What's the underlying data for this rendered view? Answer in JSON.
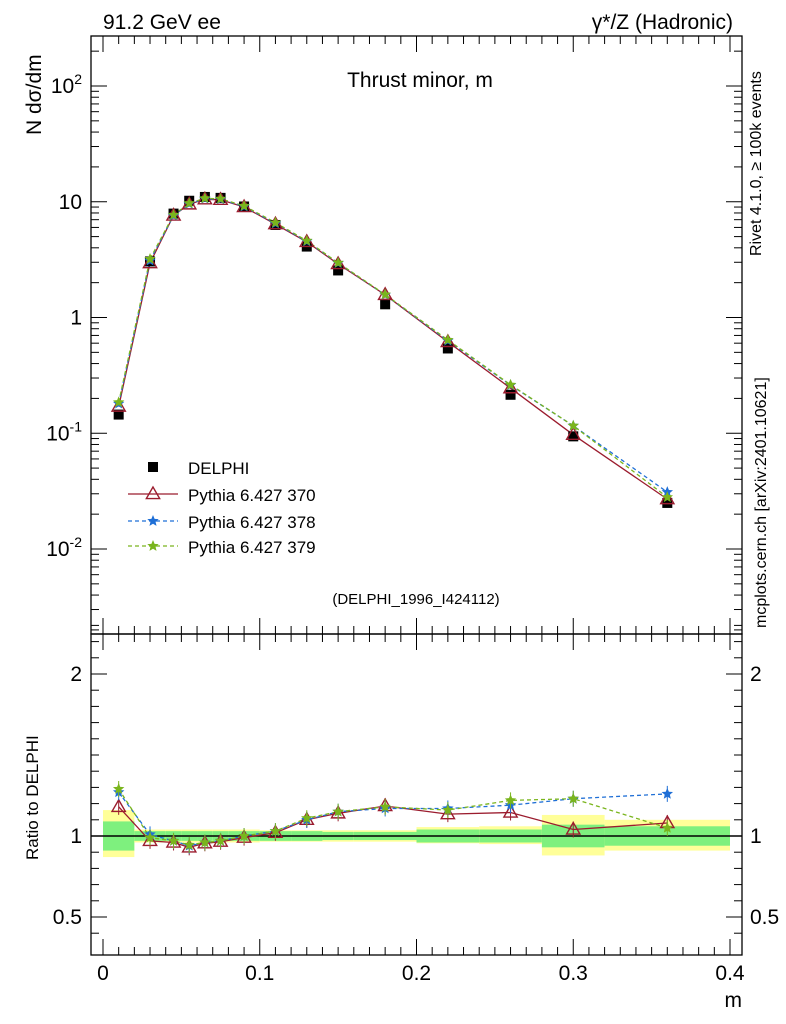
{
  "header": {
    "left": "91.2 GeV ee",
    "right": "γ*/Z (Hadronic)"
  },
  "side_text": {
    "top": "Rivet 4.1.0, ≥ 100k events",
    "bottom": "mcplots.cern.ch [arXiv:2401.10621]"
  },
  "chart_data": {
    "type": "line",
    "title": "Thrust minor, m",
    "analysis_id": "(DELPHI_1996_I424112)",
    "xlabel": "m",
    "ylabel_main": "N  dσ/dm",
    "ylabel_ratio": "Ratio to DELPHI",
    "y_scale": "log",
    "xlim": [
      0,
      0.4
    ],
    "ylim_main": [
      0.002,
      300
    ],
    "ylim_ratio": [
      0.4,
      2.3
    ],
    "x_ticks": [
      "0",
      "0.1",
      "0.2",
      "0.3",
      "0.4"
    ],
    "y_ticks_main": [
      "10^-2",
      "10^-1",
      "1",
      "10",
      "10^2"
    ],
    "y_ticks_ratio": [
      "0.5",
      "1",
      "2"
    ],
    "legend": [
      "DELPHI",
      "Pythia 6.427 370",
      "Pythia 6.427 378",
      "Pythia 6.427 379"
    ],
    "legend_position": "bottom-left",
    "colors": {
      "data": "#000000",
      "p370": "#9b1c2e",
      "p378": "#1f6fd6",
      "p379": "#7ab51d",
      "band_inner": "#7ef07e",
      "band_outer": "#ffff99"
    },
    "x": [
      0.01,
      0.03,
      0.045,
      0.055,
      0.065,
      0.075,
      0.09,
      0.11,
      0.13,
      0.15,
      0.18,
      0.22,
      0.26,
      0.3,
      0.36
    ],
    "bin_edges": [
      0.0,
      0.02,
      0.04,
      0.05,
      0.06,
      0.07,
      0.08,
      0.1,
      0.12,
      0.14,
      0.16,
      0.2,
      0.24,
      0.28,
      0.32,
      0.4
    ],
    "data_values": [
      0.145,
      3.05,
      7.9,
      10.2,
      11.0,
      10.8,
      9.1,
      6.3,
      4.1,
      2.55,
      1.3,
      0.54,
      0.215,
      0.094,
      0.025
    ],
    "series": [
      {
        "name": "Pythia 6.427 370",
        "values": [
          0.17,
          2.95,
          7.6,
          9.5,
          10.5,
          10.4,
          9.0,
          6.4,
          4.5,
          2.9,
          1.57,
          0.615,
          0.245,
          0.097,
          0.027
        ],
        "ratio": [
          1.18,
          0.97,
          0.96,
          0.93,
          0.955,
          0.965,
          0.99,
          1.02,
          1.1,
          1.14,
          1.185,
          1.135,
          1.145,
          1.04,
          1.08
        ]
      },
      {
        "name": "Pythia 6.427 378",
        "values": [
          0.18,
          3.1,
          7.6,
          9.6,
          10.6,
          10.5,
          9.1,
          6.5,
          4.55,
          2.95,
          1.57,
          0.63,
          0.26,
          0.116,
          0.031
        ],
        "ratio": [
          1.27,
          1.01,
          0.97,
          0.94,
          0.96,
          0.97,
          1.0,
          1.03,
          1.1,
          1.15,
          1.17,
          1.17,
          1.19,
          1.23,
          1.26
        ]
      },
      {
        "name": "Pythia 6.427 379",
        "values": [
          0.185,
          3.2,
          7.7,
          9.7,
          10.7,
          10.6,
          9.2,
          6.6,
          4.6,
          2.97,
          1.58,
          0.64,
          0.262,
          0.116,
          0.028
        ],
        "ratio": [
          1.29,
          0.99,
          0.97,
          0.945,
          0.96,
          0.97,
          1.0,
          1.03,
          1.11,
          1.15,
          1.18,
          1.16,
          1.22,
          1.23,
          1.05
        ]
      }
    ],
    "band_inner": [
      [
        0.91,
        1.09
      ],
      [
        0.97,
        1.03
      ],
      [
        0.97,
        1.03
      ],
      [
        0.97,
        1.03
      ],
      [
        0.97,
        1.03
      ],
      [
        0.97,
        1.03
      ],
      [
        0.97,
        1.03
      ],
      [
        0.97,
        1.03
      ],
      [
        0.97,
        1.03
      ],
      [
        0.975,
        1.025
      ],
      [
        0.975,
        1.025
      ],
      [
        0.96,
        1.04
      ],
      [
        0.96,
        1.04
      ],
      [
        0.93,
        1.07
      ],
      [
        0.94,
        1.06
      ]
    ],
    "band_outer": [
      [
        0.87,
        1.16
      ],
      [
        0.96,
        1.04
      ],
      [
        0.96,
        1.04
      ],
      [
        0.96,
        1.04
      ],
      [
        0.96,
        1.04
      ],
      [
        0.96,
        1.04
      ],
      [
        0.96,
        1.04
      ],
      [
        0.965,
        1.035
      ],
      [
        0.965,
        1.035
      ],
      [
        0.965,
        1.035
      ],
      [
        0.965,
        1.035
      ],
      [
        0.955,
        1.055
      ],
      [
        0.95,
        1.06
      ],
      [
        0.88,
        1.13
      ],
      [
        0.91,
        1.1
      ]
    ]
  }
}
